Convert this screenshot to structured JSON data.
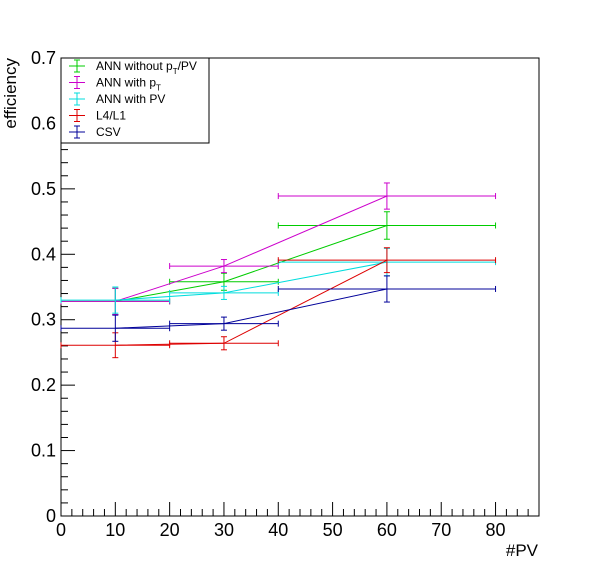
{
  "chart_data": {
    "type": "line",
    "xlabel": "#PV",
    "ylabel": "efficiency",
    "xlim": [
      0,
      88
    ],
    "ylim": [
      0,
      0.7
    ],
    "x_ticks": [
      "0",
      "10",
      "20",
      "30",
      "40",
      "50",
      "60",
      "70",
      "80"
    ],
    "y_ticks": [
      "0",
      "0.1",
      "0.2",
      "0.3",
      "0.4",
      "0.5",
      "0.6",
      "0.7"
    ],
    "grid": false,
    "legend_position": "top-left",
    "series": [
      {
        "name": "ANN without pT/PV",
        "legend_main": "ANN without p",
        "legend_sub": "T",
        "legend_tail": "/PV",
        "color": "#00cc00",
        "points": [
          {
            "x": 10,
            "y": 0.328,
            "xlo": 0,
            "xhi": 20,
            "err": 0.02
          },
          {
            "x": 30,
            "y": 0.358,
            "xlo": 20,
            "xhi": 40,
            "err": 0.013
          },
          {
            "x": 60,
            "y": 0.444,
            "xlo": 40,
            "xhi": 80,
            "err": 0.021
          }
        ]
      },
      {
        "name": "ANN with pT",
        "legend_main": "ANN with p",
        "legend_sub": "T",
        "legend_tail": "",
        "color": "#cc00cc",
        "points": [
          {
            "x": 10,
            "y": 0.328,
            "xlo": 0,
            "xhi": 20,
            "err": 0.02
          },
          {
            "x": 30,
            "y": 0.382,
            "xlo": 20,
            "xhi": 40,
            "err": 0.01
          },
          {
            "x": 60,
            "y": 0.489,
            "xlo": 40,
            "xhi": 80,
            "err": 0.02
          }
        ]
      },
      {
        "name": "ANN with PV",
        "legend_main": "ANN with PV",
        "legend_sub": "",
        "legend_tail": "",
        "color": "#00dddd",
        "points": [
          {
            "x": 10,
            "y": 0.33,
            "xlo": 0,
            "xhi": 20,
            "err": 0.02
          },
          {
            "x": 30,
            "y": 0.341,
            "xlo": 20,
            "xhi": 40,
            "err": 0.01
          },
          {
            "x": 60,
            "y": 0.388,
            "xlo": 40,
            "xhi": 80,
            "err": 0.021
          }
        ]
      },
      {
        "name": "L4/L1",
        "legend_main": "L4/L1",
        "legend_sub": "",
        "legend_tail": "",
        "color": "#dd0000",
        "points": [
          {
            "x": 10,
            "y": 0.261,
            "xlo": 0,
            "xhi": 20,
            "err": 0.019
          },
          {
            "x": 30,
            "y": 0.264,
            "xlo": 20,
            "xhi": 40,
            "err": 0.01
          },
          {
            "x": 60,
            "y": 0.391,
            "xlo": 40,
            "xhi": 80,
            "err": 0.019
          }
        ]
      },
      {
        "name": "CSV",
        "legend_main": "CSV",
        "legend_sub": "",
        "legend_tail": "",
        "color": "#000099",
        "points": [
          {
            "x": 10,
            "y": 0.287,
            "xlo": 0,
            "xhi": 20,
            "err": 0.02
          },
          {
            "x": 30,
            "y": 0.294,
            "xlo": 20,
            "xhi": 40,
            "err": 0.01
          },
          {
            "x": 60,
            "y": 0.347,
            "xlo": 40,
            "xhi": 80,
            "err": 0.02
          }
        ]
      }
    ]
  }
}
